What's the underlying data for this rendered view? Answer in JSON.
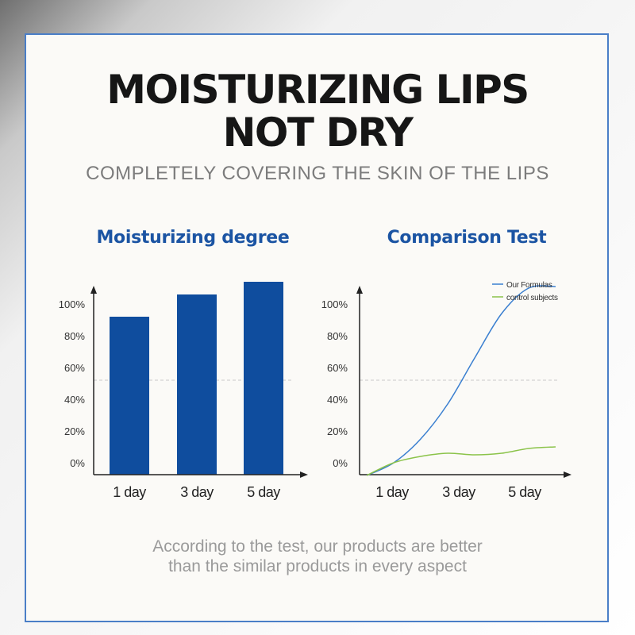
{
  "headline": {
    "line1": "MOISTURIZING LIPS",
    "line2": "NOT DRY",
    "subtitle": "COMPLETELY COVERING THE SKIN OF THE LIPS"
  },
  "footer": {
    "line1": "According to the test, our products are better",
    "line2": "than the similar products in every aspect"
  },
  "colors": {
    "bar": "#0f4d9e",
    "our_formulas": "#3a7fd0",
    "control": "#8bc34a",
    "frame": "#4a7ec7",
    "title_blue": "#1b54a3"
  },
  "chart_data": [
    {
      "type": "bar",
      "title": "Moisturizing degree",
      "categories": [
        "1 day",
        "3 day",
        "5 day"
      ],
      "values": [
        92,
        106,
        114
      ],
      "yticks": [
        "100%",
        "80%",
        "60%",
        "40%",
        "20%",
        "0%"
      ],
      "ylim": [
        0,
        120
      ],
      "reference_line": 52,
      "grid": false
    },
    {
      "type": "line",
      "title": "Comparison Test",
      "categories": [
        "1 day",
        "3 day",
        "5 day"
      ],
      "series": [
        {
          "name": "Our Formulas",
          "x": [
            0,
            0.5,
            1,
            1.5,
            2,
            2.5,
            3,
            3.5
          ],
          "values": [
            -8,
            0,
            15,
            37,
            66,
            94,
            110,
            111
          ]
        },
        {
          "name": "control subjects",
          "x": [
            0,
            0.5,
            1,
            1.5,
            2,
            2.5,
            3,
            3.5
          ],
          "values": [
            -8,
            0,
            4,
            6,
            5,
            6,
            9,
            10
          ]
        }
      ],
      "yticks": [
        "100%",
        "80%",
        "60%",
        "40%",
        "20%",
        "0%"
      ],
      "ylim": [
        0,
        120
      ],
      "reference_line": 52,
      "legend": "top-right",
      "grid": false
    }
  ]
}
